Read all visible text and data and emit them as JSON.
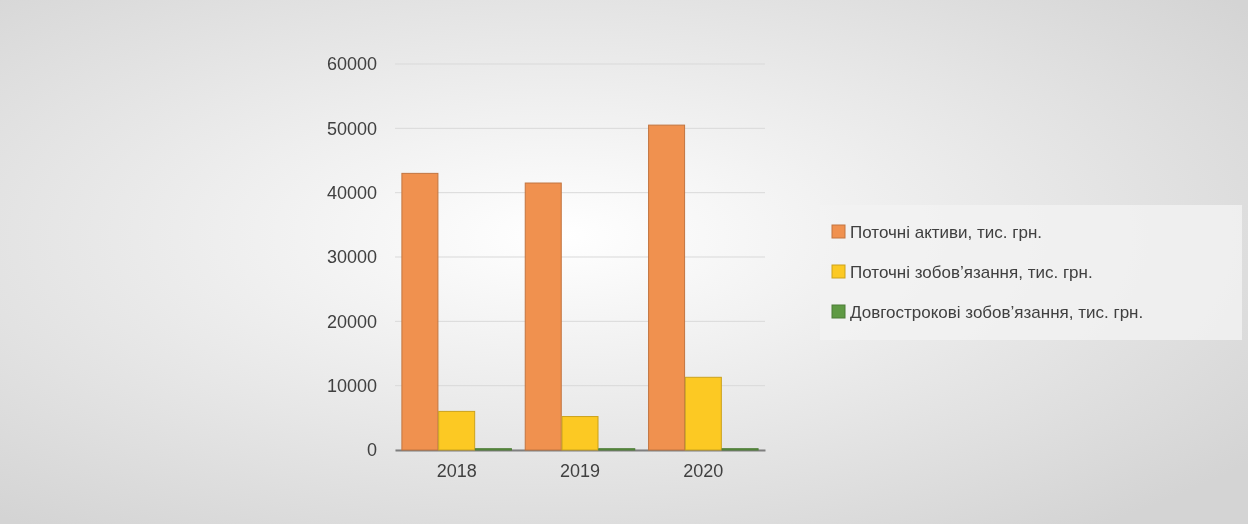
{
  "chart_data": {
    "type": "bar",
    "categories": [
      "2018",
      "2019",
      "2020"
    ],
    "series": [
      {
        "name": "Поточні активи, тис. грн.",
        "color": "#f0914f",
        "values": [
          43000,
          41500,
          50500
        ]
      },
      {
        "name": "Поточні зобов’язання, тис. грн.",
        "color": "#fcc923",
        "values": [
          6000,
          5200,
          11300
        ]
      },
      {
        "name": "Довгострокові зобов’язання, тис. грн.",
        "color": "#5f9a44",
        "values": [
          200,
          200,
          200
        ]
      }
    ],
    "ylim": [
      0,
      60000
    ],
    "yticks": [
      0,
      10000,
      20000,
      30000,
      40000,
      50000,
      60000
    ],
    "grid": "y",
    "legend": "right"
  }
}
